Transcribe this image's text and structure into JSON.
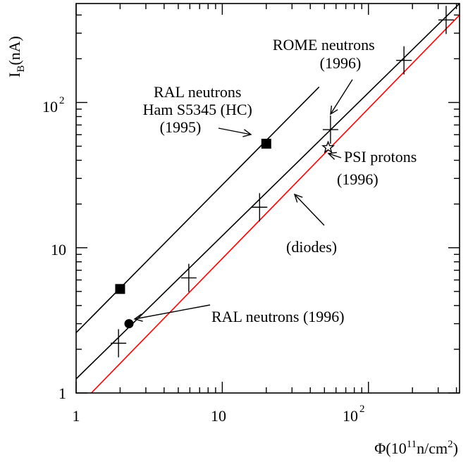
{
  "chart_data": {
    "type": "scatter",
    "xscale": "log",
    "yscale": "log",
    "xlim": [
      1,
      420
    ],
    "ylim": [
      1,
      480
    ],
    "xlabel": {
      "main": "Φ(10",
      "sup1": "11",
      "mid": "n/cm",
      "sup2": "2",
      "end": ")"
    },
    "ylabel": {
      "main": "I",
      "sub": "B",
      "end": "(nA)"
    },
    "x_ticks": [
      {
        "value": 1,
        "base": "1",
        "exp": ""
      },
      {
        "value": 10,
        "base": "10",
        "exp": ""
      },
      {
        "value": 100,
        "base": "10",
        "exp": "2"
      }
    ],
    "y_ticks": [
      {
        "value": 1,
        "base": "1",
        "exp": ""
      },
      {
        "value": 10,
        "base": "10",
        "exp": ""
      },
      {
        "value": 100,
        "base": "10",
        "exp": "2"
      }
    ],
    "lines": [
      {
        "name": "RAL neutrons Ham S5345 (HC) (1995) fit",
        "color": "#000000",
        "x": [
          1,
          46
        ],
        "y": [
          2.6,
          128
        ]
      },
      {
        "name": "ROME neutrons fit",
        "color": "#000000",
        "x": [
          1,
          420
        ],
        "y": [
          1.25,
          480
        ]
      },
      {
        "name": "(diodes)",
        "color": "#ff0000",
        "x": [
          1.27,
          420
        ],
        "y": [
          1,
          400
        ]
      }
    ],
    "series": [
      {
        "name": "RAL neutrons Ham S5345 (HC) (1995)",
        "marker": "square",
        "x": [
          2,
          20
        ],
        "y": [
          5.2,
          52
        ]
      },
      {
        "name": "RAL neutrons (1996)",
        "marker": "circle",
        "x": [
          2.3
        ],
        "y": [
          3.0
        ]
      },
      {
        "name": "ROME neutrons (1996)",
        "marker": "cross",
        "x": [
          1.95,
          5.9,
          18,
          55,
          175,
          340
        ],
        "y": [
          2.2,
          6.2,
          19,
          65,
          195,
          370
        ]
      },
      {
        "name": "PSI protons (1996)",
        "marker": "star",
        "x": [
          53
        ],
        "y": [
          49
        ]
      }
    ],
    "annotations": [
      {
        "id": "ral95",
        "lines": [
          "RAL neutrons",
          "Ham S5345 (HC)",
          "(1995)"
        ]
      },
      {
        "id": "rome",
        "lines": [
          "ROME neutrons",
          "(1996)"
        ]
      },
      {
        "id": "psi",
        "lines": [
          "PSI protons",
          "(1996)"
        ]
      },
      {
        "id": "diodes",
        "lines": [
          "(diodes)"
        ]
      },
      {
        "id": "ral96",
        "lines": [
          "RAL neutrons (1996)"
        ]
      }
    ]
  }
}
